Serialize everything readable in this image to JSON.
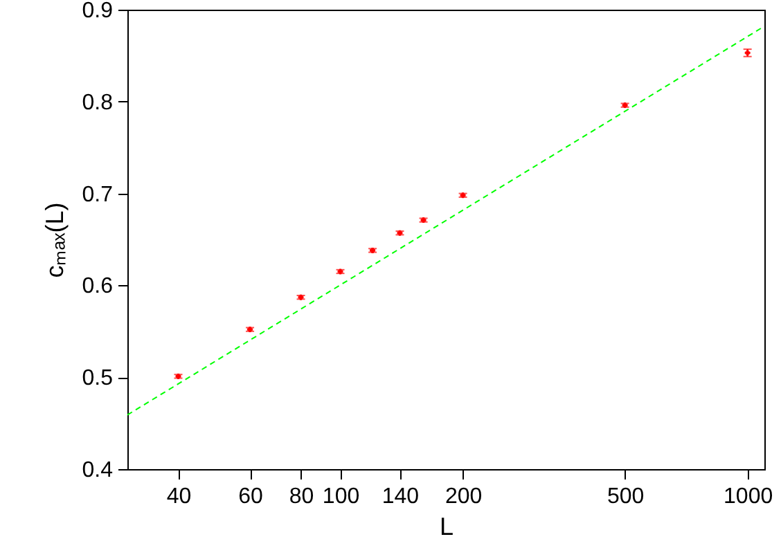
{
  "chart_data": {
    "type": "scatter",
    "xlabel": "L",
    "ylabel": "cₘₐₓ(L)",
    "log": "x",
    "xlim": [
      30,
      1100
    ],
    "ylim": [
      0.4,
      0.9
    ],
    "xticks": [
      40,
      60,
      80,
      100,
      140,
      200,
      500,
      1000
    ],
    "yticks": [
      0.4,
      0.5,
      0.6,
      0.7,
      0.8,
      0.9
    ],
    "grid": false,
    "series": [
      {
        "color": "#ff0000",
        "marker": "cross",
        "x": [
          40,
          60,
          80,
          100,
          120,
          140,
          160,
          200,
          500,
          1000
        ],
        "values": [
          0.501,
          0.552,
          0.587,
          0.615,
          0.638,
          0.657,
          0.671,
          0.698,
          0.796,
          0.853
        ],
        "errors": [
          0.002,
          0.002,
          0.002,
          0.002,
          0.002,
          0.002,
          0.002,
          0.002,
          0.002,
          0.004
        ]
      },
      {
        "type": "line",
        "color": "#00ff00",
        "line_style": "dashed",
        "marker": "none",
        "x": [
          30,
          1100
        ],
        "values": [
          0.459,
          0.882
        ]
      }
    ]
  }
}
